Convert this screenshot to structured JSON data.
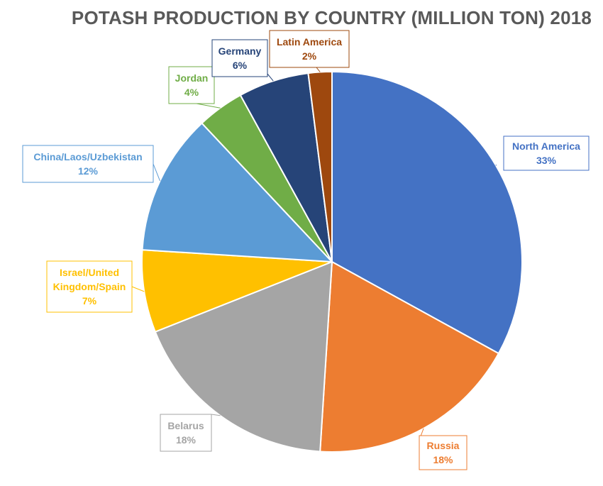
{
  "chart_data": {
    "type": "pie",
    "title": "POTASH PRODUCTION BY COUNTRY (MILLION TON) 2018",
    "slices": [
      {
        "label": "North America",
        "value": 33,
        "display": "33%",
        "color": "#4472C4",
        "label_color": "#4472C4"
      },
      {
        "label": "Russia",
        "value": 18,
        "display": "18%",
        "color": "#ED7D31",
        "label_color": "#ED7D31"
      },
      {
        "label": "Belarus",
        "value": 18,
        "display": "18%",
        "color": "#A5A5A5",
        "label_color": "#A5A5A5"
      },
      {
        "label": "Israel/United Kingdom/Spain",
        "value": 7,
        "display": "7%",
        "color": "#FFC000",
        "label_color": "#FFC000"
      },
      {
        "label": "China/Laos/Uzbekistan",
        "value": 12,
        "display": "12%",
        "color": "#5B9BD5",
        "label_color": "#5B9BD5"
      },
      {
        "label": "Jordan",
        "value": 4,
        "display": "4%",
        "color": "#70AD47",
        "label_color": "#70AD47"
      },
      {
        "label": "Germany",
        "value": 6,
        "display": "6%",
        "color": "#264478",
        "label_color": "#264478"
      },
      {
        "label": "Latin America",
        "value": 2,
        "display": "2%",
        "color": "#9E480E",
        "label_color": "#9E480E"
      }
    ]
  }
}
